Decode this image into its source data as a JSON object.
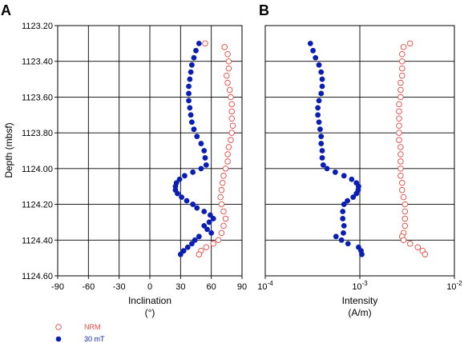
{
  "colors": {
    "nrm": "#e8483f",
    "demag": "#0b1eb4"
  },
  "chart_data": [
    {
      "panel": "A",
      "type": "scatter",
      "xlabel": "Inclination",
      "xunit": "(°)",
      "ylabel": "Depth (mbsf)",
      "xlim": [
        -90,
        90
      ],
      "ylim": [
        1123.2,
        1124.6
      ],
      "y_inverted": true,
      "xticks": [
        "-90",
        "-60",
        "-30",
        "0",
        "30",
        "60",
        "90"
      ],
      "yticks": [
        "1123.20",
        "1123.40",
        "1123.60",
        "1123.80",
        "1124.00",
        "1124.20",
        "1124.40",
        "1124.60"
      ],
      "grid": true,
      "series": [
        {
          "name": "NRM",
          "marker": "open-circle",
          "points": [
            [
              54,
              1123.3
            ],
            [
              73,
              1123.32
            ],
            [
              76,
              1123.36
            ],
            [
              77,
              1123.4
            ],
            [
              77,
              1123.44
            ],
            [
              75,
              1123.48
            ],
            [
              76,
              1123.52
            ],
            [
              78,
              1123.56
            ],
            [
              79,
              1123.6
            ],
            [
              80,
              1123.64
            ],
            [
              80,
              1123.68
            ],
            [
              80,
              1123.72
            ],
            [
              81,
              1123.76
            ],
            [
              80,
              1123.8
            ],
            [
              79,
              1123.84
            ],
            [
              77,
              1123.88
            ],
            [
              76,
              1123.92
            ],
            [
              76,
              1123.96
            ],
            [
              74,
              1124.0
            ],
            [
              72,
              1124.04
            ],
            [
              71,
              1124.08
            ],
            [
              70,
              1124.12
            ],
            [
              69,
              1124.16
            ],
            [
              70,
              1124.2
            ],
            [
              72,
              1124.24
            ],
            [
              74,
              1124.28
            ],
            [
              72,
              1124.32
            ],
            [
              70,
              1124.36
            ],
            [
              67,
              1124.4
            ],
            [
              62,
              1124.42
            ],
            [
              55,
              1124.44
            ],
            [
              50,
              1124.46
            ],
            [
              48,
              1124.48
            ]
          ]
        },
        {
          "name": "30 mT",
          "marker": "filled-circle",
          "points": [
            [
              48,
              1123.3
            ],
            [
              45,
              1123.34
            ],
            [
              43,
              1123.38
            ],
            [
              41,
              1123.42
            ],
            [
              40,
              1123.46
            ],
            [
              39,
              1123.5
            ],
            [
              38,
              1123.54
            ],
            [
              38,
              1123.58
            ],
            [
              38,
              1123.62
            ],
            [
              39,
              1123.66
            ],
            [
              40,
              1123.7
            ],
            [
              41,
              1123.74
            ],
            [
              43,
              1123.78
            ],
            [
              46,
              1123.82
            ],
            [
              50,
              1123.86
            ],
            [
              53,
              1123.9
            ],
            [
              54,
              1123.94
            ],
            [
              55,
              1123.98
            ],
            [
              50,
              1124.0
            ],
            [
              42,
              1124.02
            ],
            [
              34,
              1124.04
            ],
            [
              29,
              1124.06
            ],
            [
              26,
              1124.08
            ],
            [
              25,
              1124.1
            ],
            [
              25,
              1124.12
            ],
            [
              27,
              1124.14
            ],
            [
              31,
              1124.16
            ],
            [
              36,
              1124.18
            ],
            [
              42,
              1124.2
            ],
            [
              46,
              1124.22
            ],
            [
              53,
              1124.24
            ],
            [
              59,
              1124.26
            ],
            [
              62,
              1124.28
            ],
            [
              58,
              1124.3
            ],
            [
              53,
              1124.32
            ],
            [
              56,
              1124.34
            ],
            [
              60,
              1124.36
            ],
            [
              48,
              1124.38
            ],
            [
              44,
              1124.4
            ],
            [
              41,
              1124.42
            ],
            [
              37,
              1124.44
            ],
            [
              33,
              1124.46
            ],
            [
              30,
              1124.48
            ]
          ]
        }
      ]
    },
    {
      "panel": "B",
      "type": "scatter",
      "xlabel": "Intensity",
      "xunit": "(A/m)",
      "xscale": "log",
      "xlim": [
        0.0001,
        0.01
      ],
      "ylim": [
        1123.2,
        1124.6
      ],
      "y_inverted": true,
      "xticks": [
        {
          "base": "10",
          "exp": "-4"
        },
        {
          "base": "10",
          "exp": "-3"
        },
        {
          "base": "10",
          "exp": "-2"
        }
      ],
      "grid": true,
      "series": [
        {
          "name": "NRM",
          "marker": "open-circle",
          "points": [
            [
              0.0034,
              1123.3
            ],
            [
              0.0029,
              1123.32
            ],
            [
              0.0028,
              1123.36
            ],
            [
              0.0028,
              1123.4
            ],
            [
              0.0028,
              1123.44
            ],
            [
              0.0028,
              1123.48
            ],
            [
              0.0027,
              1123.52
            ],
            [
              0.0027,
              1123.56
            ],
            [
              0.0027,
              1123.6
            ],
            [
              0.0026,
              1123.64
            ],
            [
              0.0026,
              1123.68
            ],
            [
              0.0026,
              1123.72
            ],
            [
              0.0026,
              1123.76
            ],
            [
              0.0026,
              1123.8
            ],
            [
              0.0026,
              1123.84
            ],
            [
              0.0027,
              1123.88
            ],
            [
              0.0027,
              1123.92
            ],
            [
              0.0027,
              1123.96
            ],
            [
              0.0027,
              1124.0
            ],
            [
              0.0027,
              1124.04
            ],
            [
              0.0028,
              1124.08
            ],
            [
              0.0028,
              1124.12
            ],
            [
              0.0029,
              1124.16
            ],
            [
              0.003,
              1124.2
            ],
            [
              0.003,
              1124.24
            ],
            [
              0.003,
              1124.28
            ],
            [
              0.003,
              1124.32
            ],
            [
              0.0029,
              1124.36
            ],
            [
              0.0028,
              1124.38
            ],
            [
              0.0029,
              1124.4
            ],
            [
              0.0034,
              1124.42
            ],
            [
              0.0041,
              1124.44
            ],
            [
              0.0046,
              1124.46
            ],
            [
              0.0049,
              1124.48
            ]
          ]
        },
        {
          "name": "30 mT",
          "marker": "filled-circle",
          "points": [
            [
              0.0003,
              1123.3
            ],
            [
              0.00032,
              1123.34
            ],
            [
              0.00034,
              1123.38
            ],
            [
              0.00037,
              1123.42
            ],
            [
              0.00039,
              1123.46
            ],
            [
              0.0004,
              1123.5
            ],
            [
              0.0004,
              1123.54
            ],
            [
              0.00039,
              1123.58
            ],
            [
              0.00037,
              1123.62
            ],
            [
              0.00036,
              1123.66
            ],
            [
              0.00036,
              1123.7
            ],
            [
              0.00037,
              1123.74
            ],
            [
              0.00038,
              1123.78
            ],
            [
              0.00039,
              1123.82
            ],
            [
              0.00039,
              1123.86
            ],
            [
              0.0004,
              1123.9
            ],
            [
              0.0004,
              1123.94
            ],
            [
              0.00041,
              1123.98
            ],
            [
              0.00045,
              1124.0
            ],
            [
              0.00055,
              1124.02
            ],
            [
              0.00068,
              1124.04
            ],
            [
              0.00082,
              1124.06
            ],
            [
              0.00092,
              1124.08
            ],
            [
              0.00097,
              1124.1
            ],
            [
              0.00096,
              1124.12
            ],
            [
              0.00092,
              1124.14
            ],
            [
              0.00085,
              1124.16
            ],
            [
              0.00074,
              1124.18
            ],
            [
              0.00068,
              1124.2
            ],
            [
              0.00066,
              1124.24
            ],
            [
              0.00066,
              1124.28
            ],
            [
              0.00068,
              1124.32
            ],
            [
              0.00067,
              1124.36
            ],
            [
              0.00056,
              1124.38
            ],
            [
              0.00064,
              1124.4
            ],
            [
              0.00075,
              1124.42
            ],
            [
              0.00097,
              1124.44
            ],
            [
              0.00103,
              1124.46
            ],
            [
              0.00105,
              1124.48
            ]
          ]
        }
      ]
    }
  ],
  "legend": {
    "position": "bottom-left",
    "items": [
      {
        "label": "NRM",
        "marker": "open-circle"
      },
      {
        "label": "30 mT",
        "marker": "filled-circle"
      }
    ]
  }
}
